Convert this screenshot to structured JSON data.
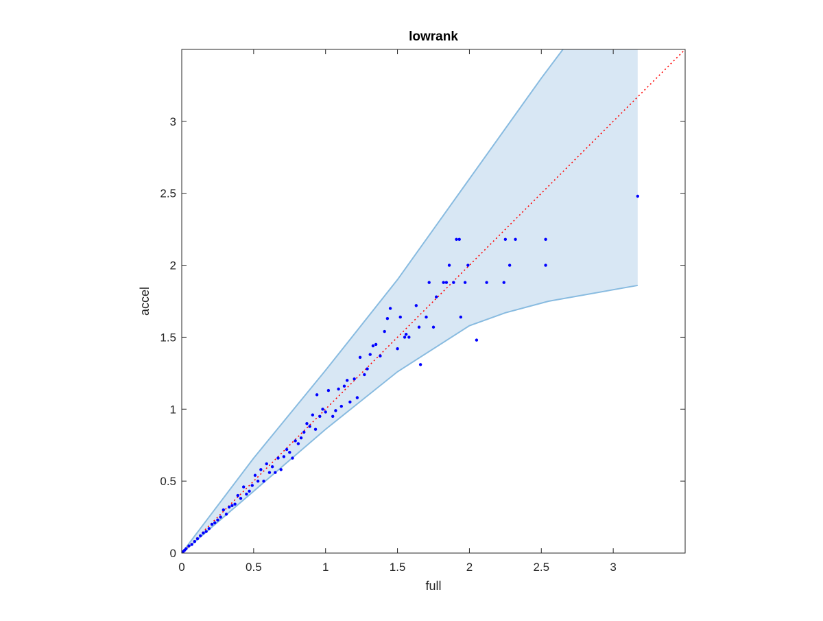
{
  "chart_data": {
    "type": "scatter",
    "title": "lowrank",
    "xlabel": "full",
    "ylabel": "accel",
    "xlim": [
      0,
      3.5
    ],
    "ylim": [
      0,
      3.5
    ],
    "xticks": [
      0,
      0.5,
      1,
      1.5,
      2,
      2.5,
      3
    ],
    "xtick_labels": [
      "0",
      "0.5",
      "1",
      "1.5",
      "2",
      "2.5",
      "3"
    ],
    "yticks": [
      0,
      0.5,
      1,
      1.5,
      2,
      2.5,
      3
    ],
    "ytick_labels": [
      "0",
      "0.5",
      "1",
      "1.5",
      "2",
      "2.5",
      "3"
    ],
    "grid": false,
    "reference_line": {
      "style": "dotted",
      "color": "#ff0000",
      "x": [
        0,
        3.5
      ],
      "y": [
        0,
        3.5
      ]
    },
    "band": {
      "color": "#d8e7f4",
      "edge_color": "#88bbe0",
      "upper": [
        {
          "x": 0,
          "y": 0
        },
        {
          "x": 0.5,
          "y": 0.66
        },
        {
          "x": 1.0,
          "y": 1.27
        },
        {
          "x": 1.5,
          "y": 1.9
        },
        {
          "x": 2.0,
          "y": 2.6
        },
        {
          "x": 2.5,
          "y": 3.3
        },
        {
          "x": 2.65,
          "y": 3.5
        }
      ],
      "upper_clip_right": {
        "x": 3.17,
        "y": 3.5
      },
      "lower": [
        {
          "x": 0,
          "y": 0
        },
        {
          "x": 0.5,
          "y": 0.43
        },
        {
          "x": 1.0,
          "y": 0.86
        },
        {
          "x": 1.5,
          "y": 1.26
        },
        {
          "x": 2.0,
          "y": 1.58
        },
        {
          "x": 2.25,
          "y": 1.67
        },
        {
          "x": 2.55,
          "y": 1.75
        },
        {
          "x": 3.17,
          "y": 1.86
        }
      ]
    },
    "series": [
      {
        "color": "#0000ff",
        "x": [
          3.17,
          2.53,
          2.53,
          2.32,
          2.28,
          2.25,
          2.24,
          2.12,
          2.05,
          1.99,
          1.97,
          1.94,
          1.93,
          1.91,
          1.89,
          1.86,
          1.84,
          1.82,
          1.77,
          1.75,
          1.72,
          1.7,
          1.66,
          1.65,
          1.63,
          1.58,
          1.56,
          1.55,
          1.52,
          1.5,
          1.45,
          1.43,
          1.41,
          1.38,
          1.35,
          1.33,
          1.31,
          1.29,
          1.27,
          1.24,
          1.22,
          1.2,
          1.17,
          1.15,
          1.13,
          1.11,
          1.09,
          1.07,
          1.05,
          1.02,
          1.0,
          0.98,
          0.96,
          0.94,
          0.93,
          0.91,
          0.89,
          0.87,
          0.85,
          0.83,
          0.81,
          0.79,
          0.77,
          0.75,
          0.73,
          0.71,
          0.69,
          0.67,
          0.65,
          0.63,
          0.61,
          0.59,
          0.57,
          0.55,
          0.53,
          0.51,
          0.49,
          0.47,
          0.45,
          0.43,
          0.41,
          0.39,
          0.37,
          0.35,
          0.33,
          0.31,
          0.29,
          0.27,
          0.25,
          0.23,
          0.21,
          0.19,
          0.17,
          0.15,
          0.13,
          0.11,
          0.09,
          0.07,
          0.05,
          0.03,
          0.02,
          0.01
        ],
        "y": [
          2.48,
          2.18,
          2.0,
          2.18,
          2.0,
          2.18,
          1.88,
          1.88,
          1.48,
          2.0,
          1.88,
          1.64,
          2.18,
          2.18,
          1.88,
          2.0,
          1.88,
          1.88,
          1.78,
          1.57,
          1.88,
          1.64,
          1.31,
          1.57,
          1.72,
          1.5,
          1.52,
          1.5,
          1.64,
          1.42,
          1.7,
          1.63,
          1.54,
          1.37,
          1.45,
          1.44,
          1.38,
          1.28,
          1.24,
          1.36,
          1.08,
          1.21,
          1.05,
          1.2,
          1.16,
          1.02,
          1.14,
          0.99,
          0.95,
          1.13,
          0.98,
          1.0,
          0.95,
          1.1,
          0.86,
          0.96,
          0.88,
          0.9,
          0.84,
          0.8,
          0.76,
          0.78,
          0.66,
          0.7,
          0.72,
          0.67,
          0.58,
          0.66,
          0.56,
          0.6,
          0.56,
          0.62,
          0.5,
          0.58,
          0.5,
          0.54,
          0.47,
          0.43,
          0.41,
          0.46,
          0.38,
          0.4,
          0.34,
          0.33,
          0.32,
          0.27,
          0.3,
          0.25,
          0.23,
          0.21,
          0.2,
          0.17,
          0.15,
          0.14,
          0.12,
          0.1,
          0.08,
          0.06,
          0.05,
          0.03,
          0.02,
          0.01
        ]
      }
    ]
  }
}
